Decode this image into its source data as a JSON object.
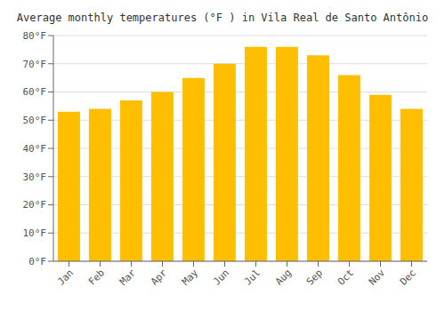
{
  "chart_data": {
    "type": "bar",
    "title": "Average monthly temperatures (°F ) in Vila Real de Santo Antônio",
    "categories": [
      "Jan",
      "Feb",
      "Mar",
      "Apr",
      "May",
      "Jun",
      "Jul",
      "Aug",
      "Sep",
      "Oct",
      "Nov",
      "Dec"
    ],
    "values": [
      53,
      54,
      57,
      60,
      65,
      70,
      76,
      76,
      73,
      66,
      59,
      54
    ],
    "color": "#FFBE00",
    "ylim": [
      0,
      80
    ],
    "yticks": [
      {
        "value": 0,
        "label": "0°F"
      },
      {
        "value": 10,
        "label": "10°F"
      },
      {
        "value": 20,
        "label": "20°F"
      },
      {
        "value": 30,
        "label": "30°F"
      },
      {
        "value": 40,
        "label": "40°F"
      },
      {
        "value": 50,
        "label": "50°F"
      },
      {
        "value": 60,
        "label": "60°F"
      },
      {
        "value": 70,
        "label": "70°F"
      },
      {
        "value": 80,
        "label": "80°F"
      }
    ],
    "grid": true
  }
}
